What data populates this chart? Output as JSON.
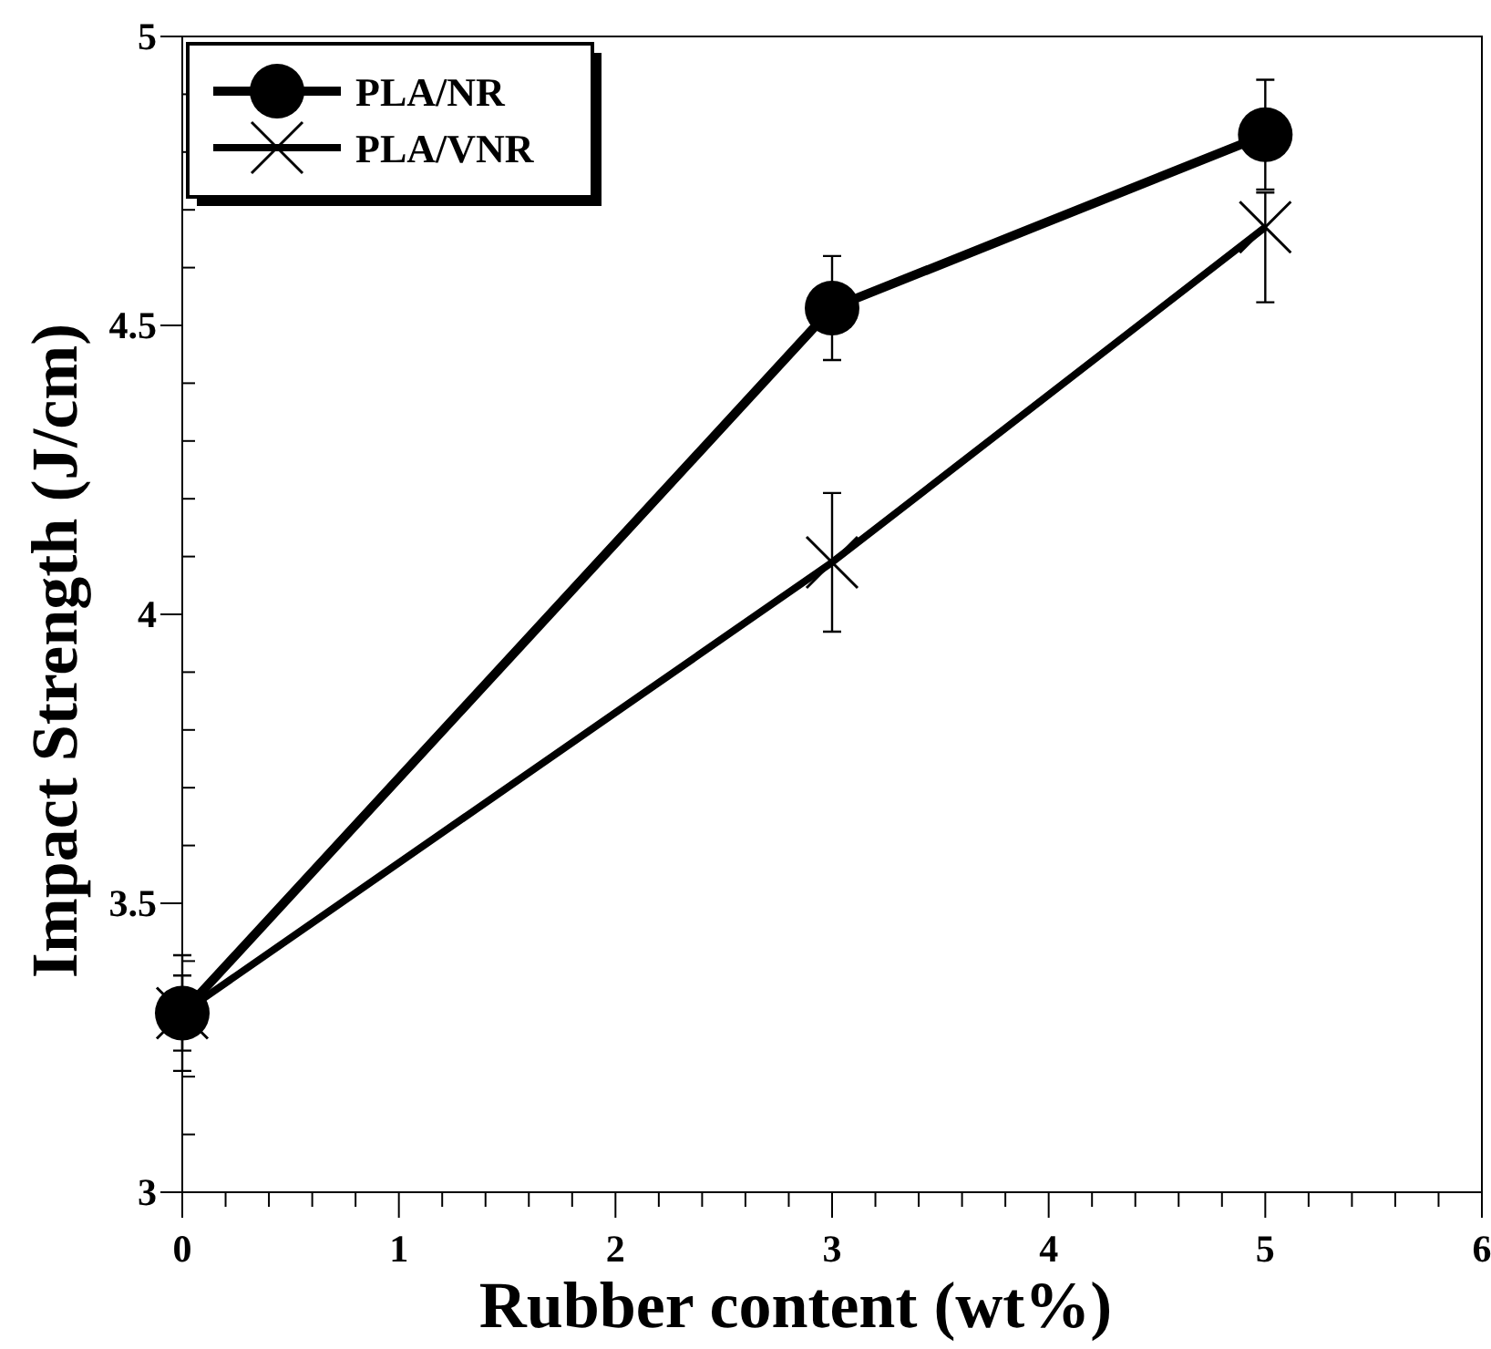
{
  "chart_data": {
    "type": "line",
    "xlabel": "Rubber content (wt%)",
    "ylabel": "Impact Strength (J/cm)",
    "x": [
      0,
      3,
      5
    ],
    "series": [
      {
        "name": "PLA/NR",
        "color": "#000000",
        "marker": "circle",
        "values": [
          3.31,
          4.53,
          4.83
        ],
        "errors": [
          0.1,
          0.09,
          0.095
        ]
      },
      {
        "name": "PLA/VNR",
        "color": "#000000",
        "marker": "cross",
        "values": [
          3.31,
          4.09,
          4.67
        ],
        "errors": [
          0.065,
          0.12,
          [
            4.54,
            4.73
          ]
        ]
      }
    ],
    "xlim": [
      0,
      6
    ],
    "xticks": [
      0,
      1,
      2,
      3,
      4,
      5,
      6
    ],
    "ylim": [
      3,
      5
    ],
    "yticks": [
      3,
      3.5,
      4,
      4.5,
      5
    ],
    "legend": "top left",
    "grid": false,
    "line_style": "solid"
  }
}
